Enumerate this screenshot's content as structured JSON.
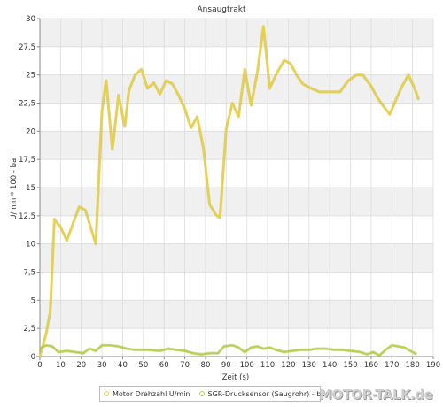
{
  "chart_data": {
    "type": "line",
    "title": "Ansaugtrakt",
    "xlabel": "Zeit (s)",
    "ylabel": "U/min * 100 - bar",
    "xlim": [
      0,
      190
    ],
    "ylim": [
      0,
      30
    ],
    "x_ticks": [
      "0",
      "10",
      "20",
      "30",
      "40",
      "50",
      "60",
      "70",
      "80",
      "90",
      "100",
      "110",
      "120",
      "130",
      "140",
      "150",
      "160",
      "170",
      "180",
      "190"
    ],
    "y_ticks": [
      "0",
      "2,5",
      "5",
      "7,5",
      "10",
      "12,5",
      "15",
      "17,5",
      "20",
      "22,5",
      "25",
      "27,5",
      "30"
    ],
    "grid": true,
    "legend_position": "bottom",
    "series": [
      {
        "name": "Motor Drehzahl U/min",
        "color": "#ead23a",
        "points": [
          [
            0,
            0
          ],
          [
            3,
            2
          ],
          [
            5,
            4
          ],
          [
            7,
            12.2
          ],
          [
            10,
            11.5
          ],
          [
            13,
            10.3
          ],
          [
            16,
            11.8
          ],
          [
            19,
            13.3
          ],
          [
            22,
            13
          ],
          [
            25,
            11.2
          ],
          [
            27,
            10
          ],
          [
            30,
            21.8
          ],
          [
            32,
            24.5
          ],
          [
            35,
            18.4
          ],
          [
            38,
            23.2
          ],
          [
            41,
            20.4
          ],
          [
            43,
            23.6
          ],
          [
            46,
            25
          ],
          [
            49,
            25.5
          ],
          [
            52,
            23.8
          ],
          [
            55,
            24.3
          ],
          [
            58,
            23.3
          ],
          [
            61,
            24.5
          ],
          [
            64,
            24.2
          ],
          [
            67,
            23.2
          ],
          [
            70,
            22
          ],
          [
            73,
            20.3
          ],
          [
            76,
            21.3
          ],
          [
            79,
            18.5
          ],
          [
            82,
            13.5
          ],
          [
            85,
            12.6
          ],
          [
            87,
            12.3
          ],
          [
            90,
            20.2
          ],
          [
            93,
            22.5
          ],
          [
            96,
            21.3
          ],
          [
            99,
            25.5
          ],
          [
            102,
            22.3
          ],
          [
            105,
            25.2
          ],
          [
            108,
            29.3
          ],
          [
            111,
            23.8
          ],
          [
            114,
            25
          ],
          [
            118,
            26.3
          ],
          [
            121,
            26
          ],
          [
            124,
            25
          ],
          [
            127,
            24.2
          ],
          [
            131,
            23.8
          ],
          [
            135,
            23.5
          ],
          [
            140,
            23.5
          ],
          [
            145,
            23.5
          ],
          [
            149,
            24.5
          ],
          [
            153,
            25
          ],
          [
            156,
            25
          ],
          [
            160,
            24
          ],
          [
            163,
            23
          ],
          [
            166,
            22.2
          ],
          [
            169,
            21.5
          ],
          [
            172,
            22.8
          ],
          [
            175,
            24
          ],
          [
            178,
            25
          ],
          [
            181,
            23.8
          ],
          [
            183,
            22.8
          ]
        ]
      },
      {
        "name": "SGR-Drucksensor (Saugrohr) - bar",
        "color": "#b7d34a",
        "points": [
          [
            0,
            0.7
          ],
          [
            3,
            1.0
          ],
          [
            6,
            0.9
          ],
          [
            9,
            0.4
          ],
          [
            13,
            0.5
          ],
          [
            17,
            0.4
          ],
          [
            21,
            0.3
          ],
          [
            24,
            0.7
          ],
          [
            27,
            0.5
          ],
          [
            30,
            1.0
          ],
          [
            34,
            1.0
          ],
          [
            38,
            0.9
          ],
          [
            42,
            0.7
          ],
          [
            46,
            0.6
          ],
          [
            52,
            0.6
          ],
          [
            58,
            0.5
          ],
          [
            62,
            0.7
          ],
          [
            66,
            0.6
          ],
          [
            70,
            0.5
          ],
          [
            74,
            0.3
          ],
          [
            78,
            0.2
          ],
          [
            82,
            0.3
          ],
          [
            86,
            0.3
          ],
          [
            89,
            0.9
          ],
          [
            93,
            1.0
          ],
          [
            96,
            0.8
          ],
          [
            99,
            0.4
          ],
          [
            102,
            0.8
          ],
          [
            105,
            0.9
          ],
          [
            108,
            0.7
          ],
          [
            111,
            0.8
          ],
          [
            114,
            0.6
          ],
          [
            118,
            0.4
          ],
          [
            122,
            0.5
          ],
          [
            126,
            0.6
          ],
          [
            130,
            0.6
          ],
          [
            134,
            0.7
          ],
          [
            138,
            0.7
          ],
          [
            142,
            0.6
          ],
          [
            146,
            0.6
          ],
          [
            150,
            0.5
          ],
          [
            155,
            0.4
          ],
          [
            158,
            0.2
          ],
          [
            161,
            0.4
          ],
          [
            164,
            0.1
          ],
          [
            167,
            0.6
          ],
          [
            170,
            1.0
          ],
          [
            173,
            0.9
          ],
          [
            176,
            0.8
          ],
          [
            179,
            0.5
          ],
          [
            182,
            0.2
          ]
        ]
      }
    ]
  },
  "watermark": "MOTOR-TALK.de"
}
